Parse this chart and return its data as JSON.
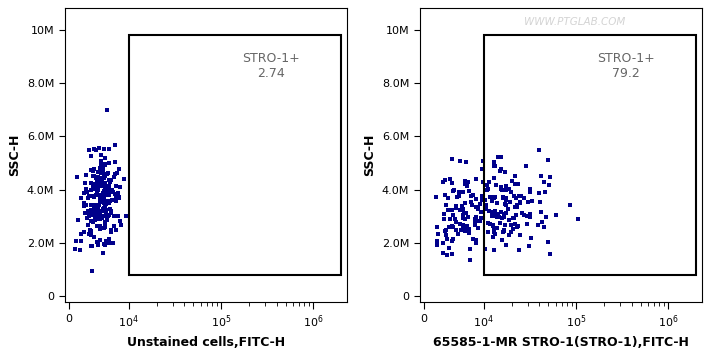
{
  "panel1": {
    "xlabel": "Unstained cells,FITC-H",
    "ylabel": "SSC-H",
    "gate_label": "STRO-1+",
    "gate_value": "2.74",
    "dot_color": "#00008B",
    "seed": 42,
    "n_main": 200,
    "n_scatter": 40
  },
  "panel2": {
    "xlabel": "65585-1-MR STRO-1(STRO-1),FITC-H",
    "ylabel": "SSC-H",
    "gate_label": "STRO-1+",
    "gate_value": "79.2",
    "dot_color": "#00008B",
    "seed": 77,
    "n_main": 200,
    "n_scatter": 40
  },
  "yticks": [
    0,
    2000000,
    4000000,
    6000000,
    8000000,
    10000000
  ],
  "ytick_labels": [
    "0",
    "2.0M",
    "4.0M",
    "6.0M",
    "8.0M",
    "10M"
  ],
  "watermark": "WWW.PTGLAB.COM",
  "background_color": "#ffffff",
  "dot_size": 5
}
